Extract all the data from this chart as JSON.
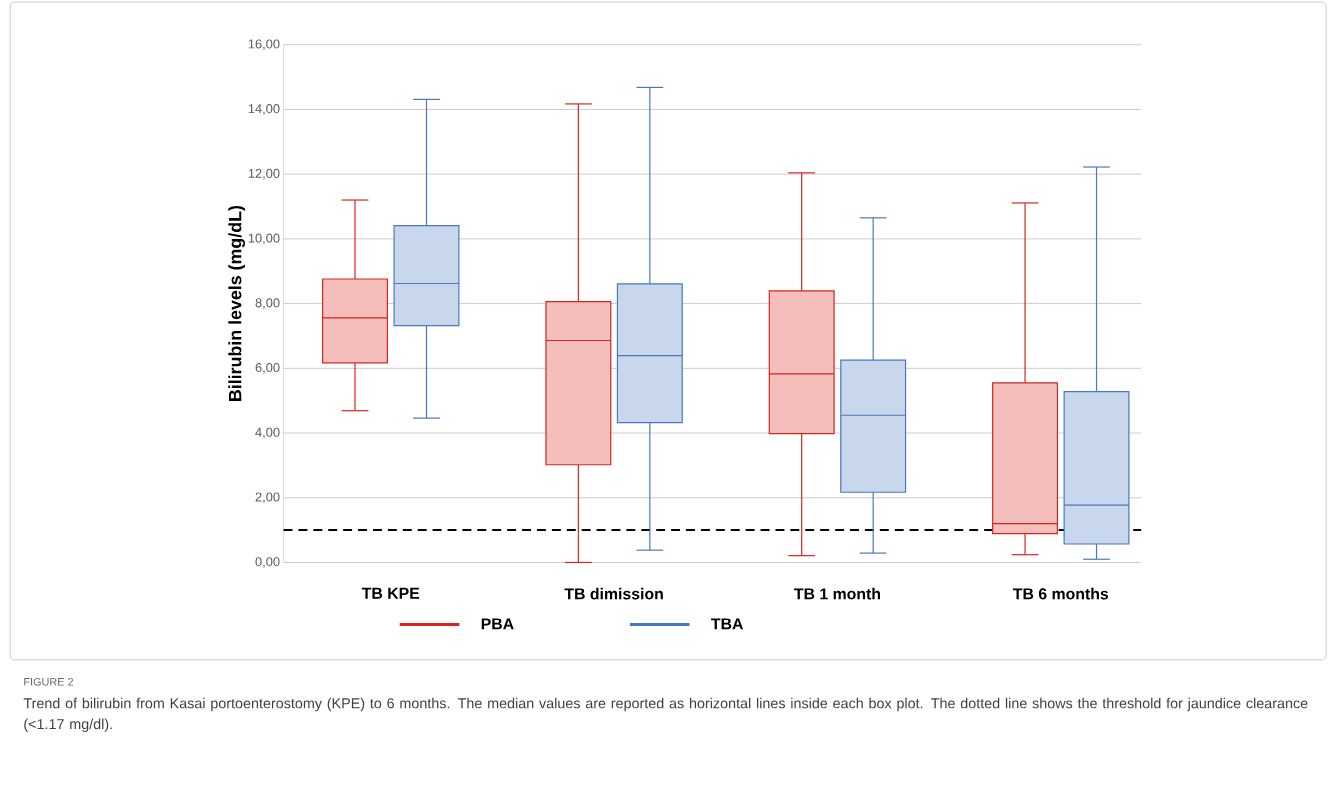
{
  "chart_data": {
    "type": "box",
    "ylabel": "Bilirubin levels (mg/dL)",
    "categories": [
      "TB KPE",
      "TB dimission",
      "TB 1 month",
      "TB 6 months"
    ],
    "series": [
      {
        "name": "PBA",
        "color": "#d7261e",
        "boxes": [
          {
            "low": 4.69,
            "q1": 6.17,
            "median": 7.56,
            "q3": 8.76,
            "high": 11.2
          },
          {
            "low": 0,
            "q1": 3.02,
            "median": 6.86,
            "q3": 8.06,
            "high": 14.17
          },
          {
            "low": 0.21,
            "q1": 3.98,
            "median": 5.83,
            "q3": 8.39,
            "high": 12.04
          },
          {
            "low": 0.24,
            "q1": 0.89,
            "median": 1.2,
            "q3": 5.55,
            "high": 11.11
          }
        ]
      },
      {
        "name": "TBA",
        "color": "#4a78c0",
        "boxes": [
          {
            "low": 4.46,
            "q1": 7.32,
            "median": 8.62,
            "q3": 10.41,
            "high": 14.31
          },
          {
            "low": 0.38,
            "q1": 4.32,
            "median": 6.39,
            "q3": 8.61,
            "high": 14.68
          },
          {
            "low": 0.29,
            "q1": 2.17,
            "median": 4.55,
            "q3": 6.25,
            "high": 10.65
          },
          {
            "low": 0.1,
            "q1": 0.57,
            "median": 1.77,
            "q3": 5.28,
            "high": 12.22
          }
        ]
      }
    ],
    "ylim": [
      0,
      16
    ],
    "yticks": [
      {
        "value": 0,
        "label": "0,00"
      },
      {
        "value": 2,
        "label": "2,00"
      },
      {
        "value": 4,
        "label": "4,00"
      },
      {
        "value": 6,
        "label": "6,00"
      },
      {
        "value": 8,
        "label": "8,00"
      },
      {
        "value": 10,
        "label": "10,00"
      },
      {
        "value": 12,
        "label": "12,00"
      },
      {
        "value": 14,
        "label": "14,00"
      },
      {
        "value": 16,
        "label": "16,00"
      }
    ],
    "grid": "y",
    "legend": "bottom",
    "ref_lines": [
      {
        "axis": "y",
        "value": 1.0,
        "color": "#000000",
        "line_style": "dashed"
      }
    ],
    "annotations": [
      "FIGURE 2",
      "Trend of bilirubin from Kasai portoenterostomy (KPE) to 6 months. The median values are reported as horizontal lines inside each box plot. The dotted line shows the threshold for jaundice clearance (<1.17 mg/dl)."
    ]
  }
}
